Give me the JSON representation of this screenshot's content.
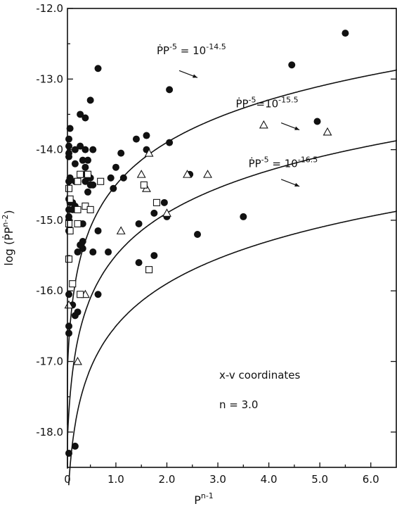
{
  "chart_data": {
    "type": "scatter",
    "xlabel": "P",
    "xlabel_sup": "n-1",
    "ylabel": "log (ṖP",
    "ylabel_sup": "n-2",
    "ylabel_close": ")",
    "xlim": [
      0,
      6.5
    ],
    "ylim": [
      -18.5,
      -12.0
    ],
    "x_ticks": [
      {
        "v": 0,
        "label": "0"
      },
      {
        "v": 1,
        "label": "1.0"
      },
      {
        "v": 2,
        "label": "2.0"
      },
      {
        "v": 3,
        "label": "3.0"
      },
      {
        "v": 4,
        "label": "4.0"
      },
      {
        "v": 5,
        "label": "5.0"
      },
      {
        "v": 6,
        "label": "6.0"
      }
    ],
    "y_ticks": [
      {
        "v": -12,
        "label": "-12.0"
      },
      {
        "v": -13,
        "label": "-13.0"
      },
      {
        "v": -14,
        "label": "-14.0"
      },
      {
        "v": -15,
        "label": "-15.0"
      },
      {
        "v": -16,
        "label": "-16.0"
      },
      {
        "v": -17,
        "label": "-17.0"
      },
      {
        "v": -18,
        "label": "-18.0"
      }
    ],
    "grid": false,
    "annotations": {
      "coords": "x-v coordinates",
      "n_value": "n = 3.0"
    },
    "curves": [
      {
        "logC": -14.5,
        "label_base": "ṖP",
        "label_exp1": "-5",
        "label_mid": " = 10",
        "label_exp2": "-14.5",
        "label_at": [
          1.8,
          -12.65
        ],
        "arrow_to": [
          2.6,
          -12.98
        ]
      },
      {
        "logC": -15.5,
        "label_base": "ṖP",
        "label_exp1": "-5",
        "label_mid": "=10",
        "label_exp2": "-15.5",
        "label_at": [
          3.35,
          -13.4
        ],
        "arrow_to": [
          4.6,
          -13.72
        ]
      },
      {
        "logC": -16.5,
        "label_base": "ṖP",
        "label_exp1": "-5",
        "label_mid": " = 10",
        "label_exp2": "-16.5",
        "label_at": [
          3.6,
          -14.25
        ],
        "arrow_to": [
          4.6,
          -14.52
        ]
      }
    ],
    "series": [
      {
        "marker": "circle",
        "points": [
          [
            0.0,
            -13.85
          ],
          [
            0.0,
            -13.95
          ],
          [
            0.0,
            -14.05
          ],
          [
            0.0,
            -14.45
          ],
          [
            0.0,
            -14.55
          ],
          [
            0.0,
            -14.7
          ],
          [
            0.0,
            -14.85
          ],
          [
            0.0,
            -15.0
          ],
          [
            0.0,
            -15.15
          ],
          [
            0.05,
            -14.1
          ],
          [
            0.05,
            -14.95
          ],
          [
            0.05,
            -15.15
          ],
          [
            0.05,
            -16.05
          ],
          [
            0.05,
            -16.5
          ],
          [
            0.05,
            -16.6
          ],
          [
            0.1,
            -13.7
          ],
          [
            0.1,
            -14.4
          ],
          [
            0.1,
            -14.75
          ],
          [
            0.15,
            -14.75
          ],
          [
            0.15,
            -14.85
          ],
          [
            0.15,
            -16.2
          ],
          [
            0.2,
            -14.0
          ],
          [
            0.2,
            -14.2
          ],
          [
            0.2,
            -14.45
          ],
          [
            0.2,
            -14.8
          ],
          [
            0.2,
            -16.35
          ],
          [
            0.25,
            -15.45
          ],
          [
            0.25,
            -16.3
          ],
          [
            0.3,
            -13.5
          ],
          [
            0.3,
            -13.95
          ],
          [
            0.3,
            -15.35
          ],
          [
            0.35,
            -14.15
          ],
          [
            0.35,
            -14.35
          ],
          [
            0.35,
            -15.05
          ],
          [
            0.35,
            -15.3
          ],
          [
            0.35,
            -15.4
          ],
          [
            0.4,
            -13.55
          ],
          [
            0.4,
            -14.0
          ],
          [
            0.4,
            -14.25
          ],
          [
            0.4,
            -14.45
          ],
          [
            0.45,
            -14.15
          ],
          [
            0.45,
            -14.4
          ],
          [
            0.45,
            -14.6
          ],
          [
            0.5,
            -13.3
          ],
          [
            0.5,
            -14.4
          ],
          [
            0.5,
            -14.5
          ],
          [
            0.55,
            -14.0
          ],
          [
            0.55,
            -14.5
          ],
          [
            0.55,
            -15.45
          ],
          [
            0.65,
            -12.85
          ],
          [
            0.65,
            -15.15
          ],
          [
            0.65,
            -16.05
          ],
          [
            0.85,
            -15.45
          ],
          [
            0.9,
            -14.4
          ],
          [
            0.95,
            -14.55
          ],
          [
            1.0,
            -14.25
          ],
          [
            1.1,
            -14.05
          ],
          [
            1.15,
            -14.4
          ],
          [
            1.4,
            -13.85
          ],
          [
            1.45,
            -15.05
          ],
          [
            1.45,
            -15.6
          ],
          [
            1.6,
            -13.8
          ],
          [
            1.6,
            -14.0
          ],
          [
            1.75,
            -14.9
          ],
          [
            1.75,
            -15.5
          ],
          [
            1.95,
            -14.75
          ],
          [
            2.0,
            -14.95
          ],
          [
            2.05,
            -13.15
          ],
          [
            2.05,
            -13.9
          ],
          [
            2.45,
            -14.35
          ],
          [
            2.6,
            -15.2
          ],
          [
            3.5,
            -14.95
          ],
          [
            4.45,
            -12.8
          ],
          [
            4.95,
            -13.6
          ],
          [
            5.5,
            -12.35
          ],
          [
            0.0,
            -18.3
          ],
          [
            0.2,
            -18.2
          ]
        ]
      },
      {
        "marker": "triangle",
        "points": [
          [
            0.05,
            -16.2
          ],
          [
            0.25,
            -17.0
          ],
          [
            0.4,
            -16.05
          ],
          [
            1.1,
            -15.15
          ],
          [
            1.5,
            -14.35
          ],
          [
            1.6,
            -14.55
          ],
          [
            1.65,
            -14.05
          ],
          [
            2.0,
            -14.9
          ],
          [
            2.4,
            -14.35
          ],
          [
            2.8,
            -14.35
          ],
          [
            3.9,
            -13.65
          ],
          [
            5.15,
            -13.75
          ]
        ]
      },
      {
        "marker": "square",
        "points": [
          [
            0.0,
            -14.55
          ],
          [
            0.0,
            -15.55
          ],
          [
            0.05,
            -15.05
          ],
          [
            0.1,
            -14.7
          ],
          [
            0.1,
            -15.15
          ],
          [
            0.15,
            -15.9
          ],
          [
            0.25,
            -14.45
          ],
          [
            0.25,
            -14.85
          ],
          [
            0.25,
            -15.05
          ],
          [
            0.3,
            -14.35
          ],
          [
            0.3,
            -16.05
          ],
          [
            0.4,
            -14.8
          ],
          [
            0.45,
            -14.35
          ],
          [
            0.5,
            -14.85
          ],
          [
            0.7,
            -14.45
          ],
          [
            1.55,
            -14.5
          ],
          [
            1.65,
            -15.7
          ],
          [
            1.8,
            -14.75
          ]
        ]
      }
    ]
  }
}
